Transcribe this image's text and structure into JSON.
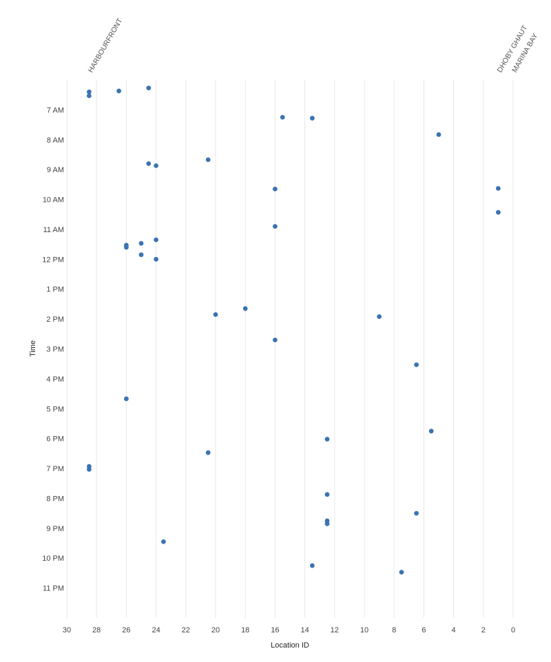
{
  "chart_data": {
    "type": "scatter",
    "xlabel": "Location ID",
    "ylabel": "Time",
    "xlim": [
      30,
      0
    ],
    "x_ticks": [
      30,
      28,
      26,
      24,
      22,
      20,
      18,
      16,
      14,
      12,
      10,
      8,
      6,
      4,
      2,
      0
    ],
    "ylim": [
      6.0,
      24.0
    ],
    "y_tick_values": [
      7,
      8,
      9,
      10,
      11,
      12,
      13,
      14,
      15,
      16,
      17,
      18,
      19,
      20,
      21,
      22,
      23
    ],
    "y_tick_labels": [
      "7 AM",
      "8 AM",
      "9 AM",
      "10 AM",
      "11 AM",
      "12 PM",
      "1 PM",
      "2 PM",
      "3 PM",
      "4 PM",
      "5 PM",
      "6 PM",
      "7 PM",
      "8 PM",
      "9 PM",
      "10 PM",
      "11 PM"
    ],
    "grid": "vertical",
    "top_annotations": [
      {
        "label": "HARBOURFRONT",
        "x": 28.5
      },
      {
        "label": "DHOBY GHAUT",
        "x": 1
      },
      {
        "label": "MARINA BAY",
        "x": 0
      }
    ],
    "points": [
      {
        "x": 28.5,
        "y": 6.4
      },
      {
        "x": 28.5,
        "y": 6.53
      },
      {
        "x": 26.5,
        "y": 6.37
      },
      {
        "x": 24.5,
        "y": 6.27
      },
      {
        "x": 15.5,
        "y": 7.25
      },
      {
        "x": 13.5,
        "y": 7.28
      },
      {
        "x": 5,
        "y": 7.83
      },
      {
        "x": 20.5,
        "y": 8.67
      },
      {
        "x": 24.5,
        "y": 8.8
      },
      {
        "x": 24,
        "y": 8.87
      },
      {
        "x": 16,
        "y": 9.65
      },
      {
        "x": 1,
        "y": 9.63
      },
      {
        "x": 1,
        "y": 10.43
      },
      {
        "x": 16,
        "y": 10.9
      },
      {
        "x": 24,
        "y": 11.35
      },
      {
        "x": 25,
        "y": 11.47
      },
      {
        "x": 26,
        "y": 11.53
      },
      {
        "x": 26,
        "y": 11.6
      },
      {
        "x": 25,
        "y": 11.85
      },
      {
        "x": 24,
        "y": 12.0
      },
      {
        "x": 18,
        "y": 13.65
      },
      {
        "x": 20,
        "y": 13.85
      },
      {
        "x": 9,
        "y": 13.92
      },
      {
        "x": 16,
        "y": 14.7
      },
      {
        "x": 6.5,
        "y": 15.53
      },
      {
        "x": 26,
        "y": 16.67
      },
      {
        "x": 5.5,
        "y": 17.75
      },
      {
        "x": 12.5,
        "y": 18.02
      },
      {
        "x": 20.5,
        "y": 18.47
      },
      {
        "x": 28.5,
        "y": 18.93
      },
      {
        "x": 28.5,
        "y": 19.03
      },
      {
        "x": 12.5,
        "y": 19.87
      },
      {
        "x": 6.5,
        "y": 20.5
      },
      {
        "x": 12.5,
        "y": 20.75
      },
      {
        "x": 12.5,
        "y": 20.85
      },
      {
        "x": 23.5,
        "y": 21.45
      },
      {
        "x": 13.5,
        "y": 22.25
      },
      {
        "x": 7.5,
        "y": 22.47
      }
    ],
    "point_color": "#3b73b2"
  }
}
